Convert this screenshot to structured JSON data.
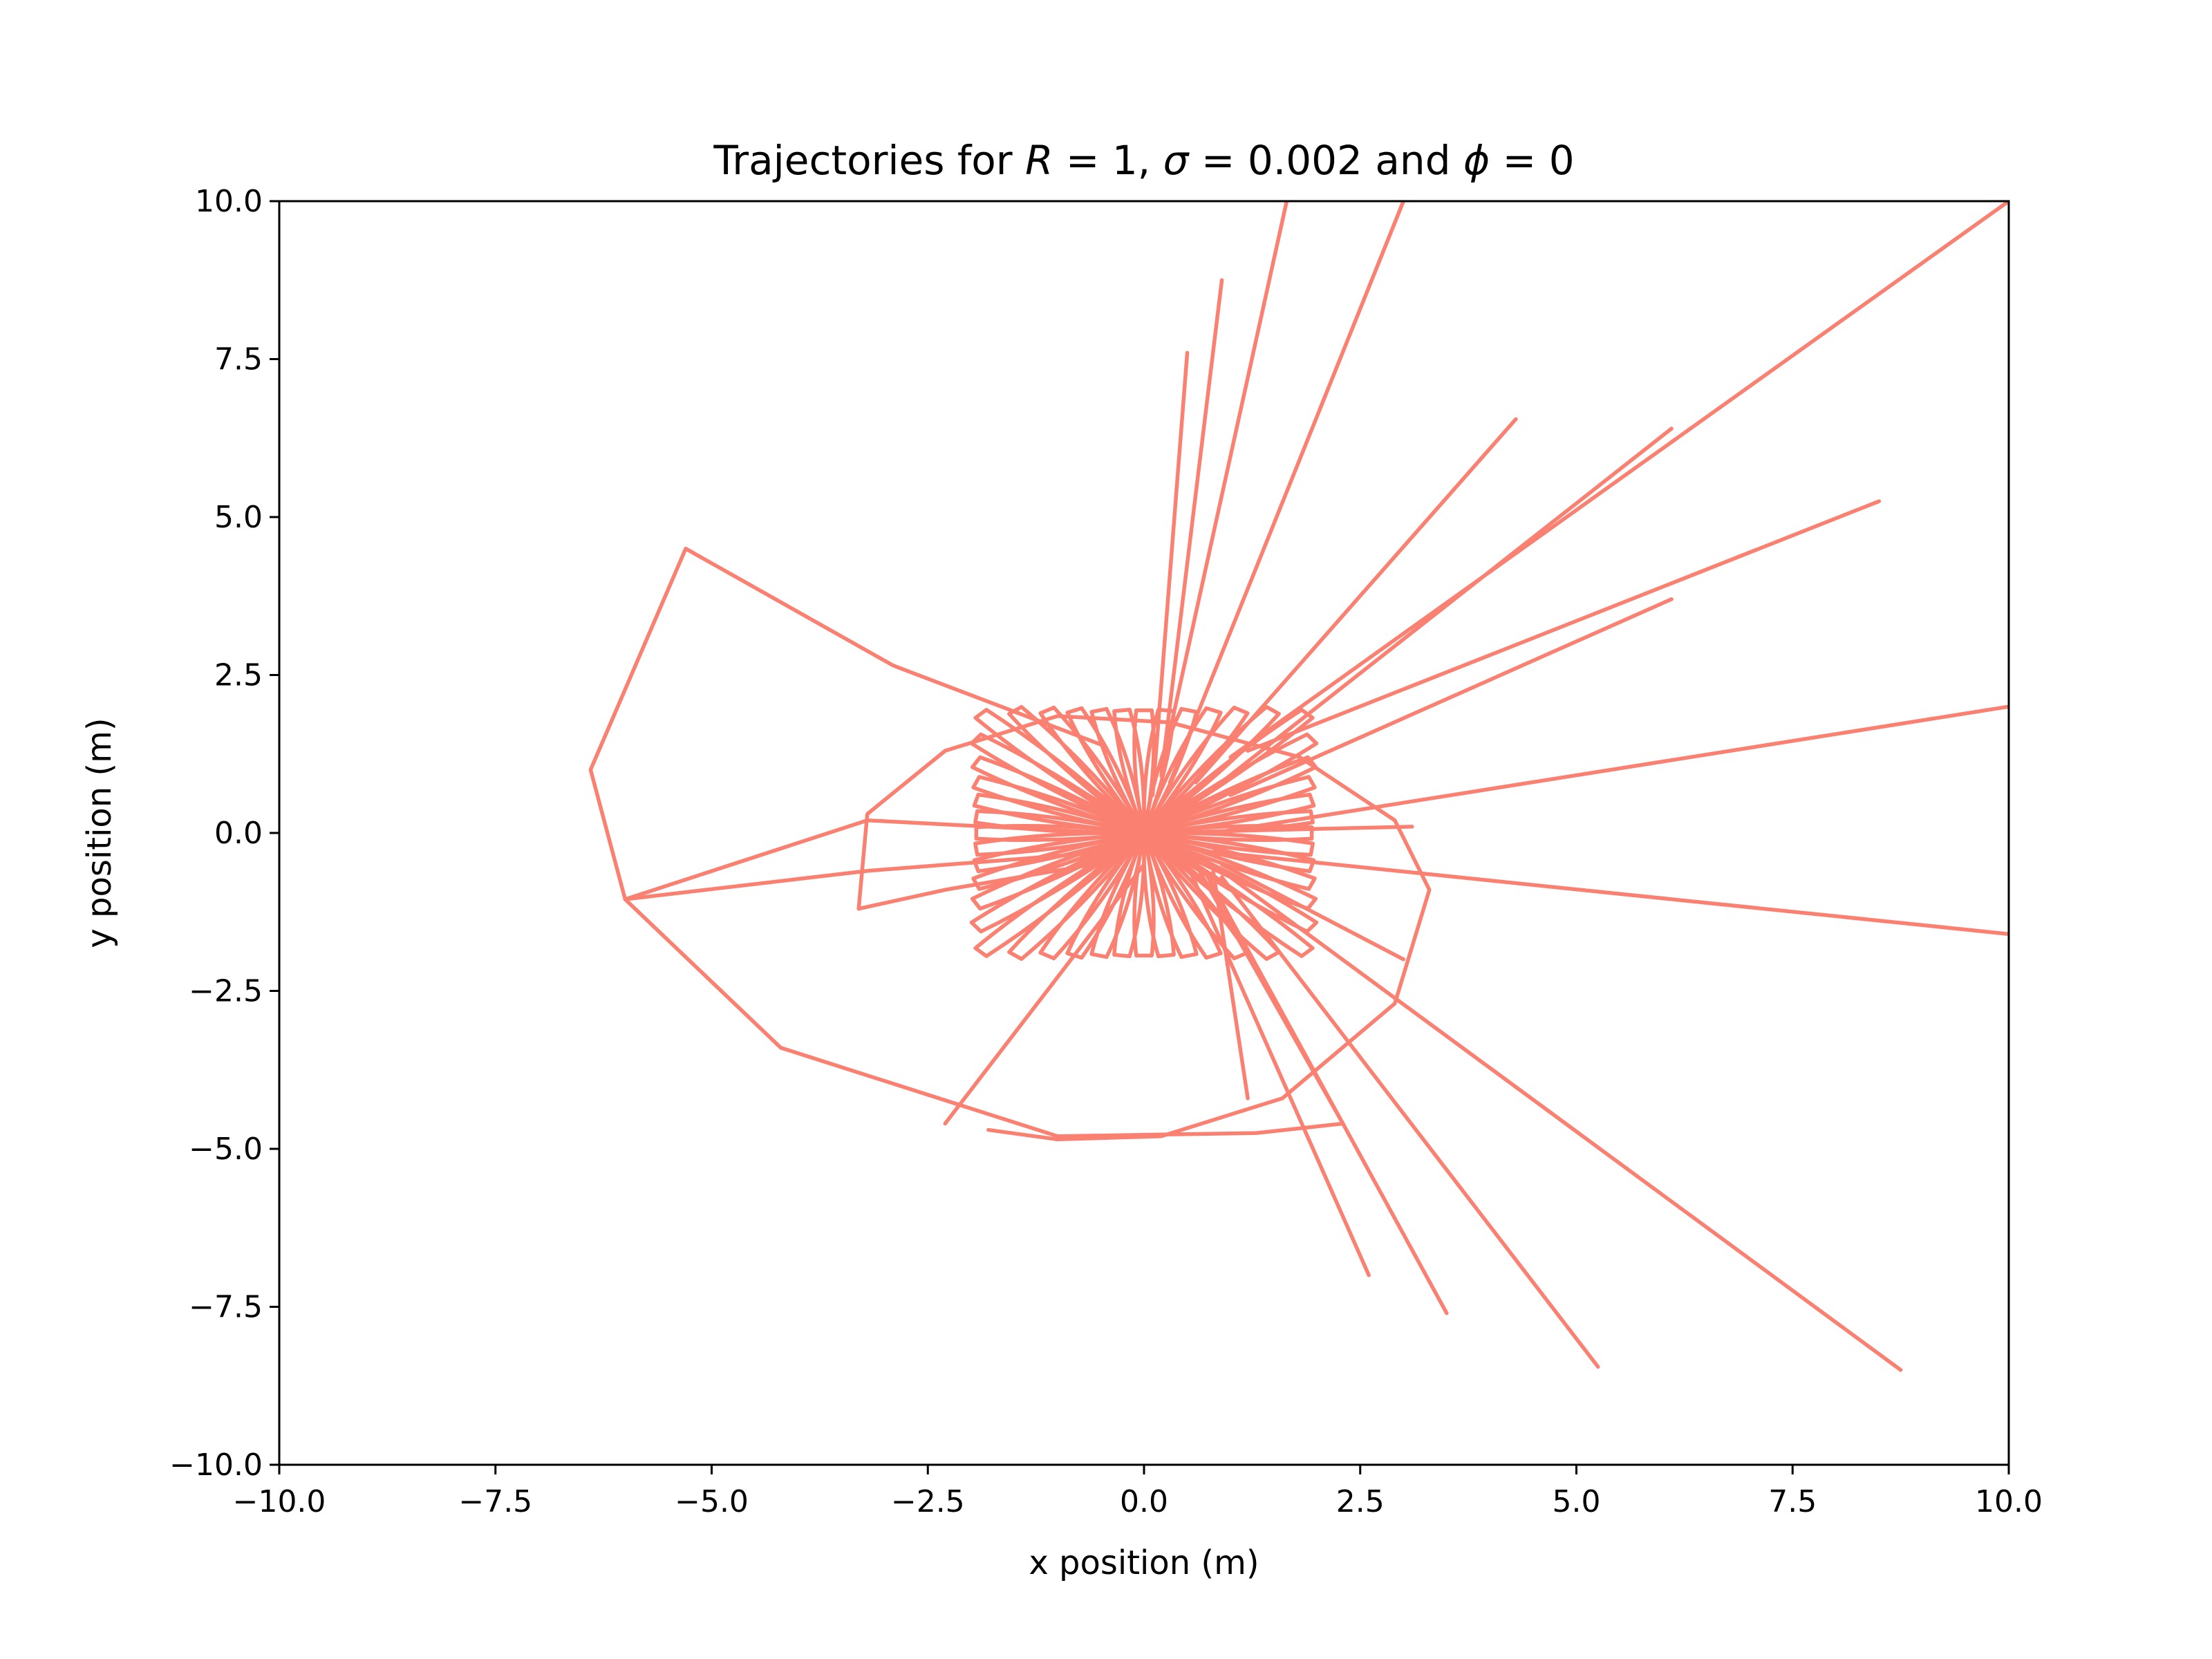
{
  "chart_data": {
    "type": "line",
    "title": {
      "prefix": "Trajectories for ",
      "r_symbol": "R",
      "r_value": "1",
      "sigma_symbol": "σ",
      "sigma_value": "0.002",
      "connector": " and ",
      "phi_symbol": "ϕ",
      "phi_value": "0"
    },
    "xlabel": "x position (m)",
    "ylabel": "y position (m)",
    "xlim": [
      -10,
      10
    ],
    "ylim": [
      -10,
      10
    ],
    "xticks": [
      -10,
      -7.5,
      -5,
      -2.5,
      0,
      2.5,
      5,
      7.5,
      10
    ],
    "yticks": [
      -10,
      -7.5,
      -5,
      -2.5,
      0,
      2.5,
      5,
      7.5,
      10
    ],
    "xtick_labels": [
      "−10.0",
      "−7.5",
      "−5.0",
      "−2.5",
      "0.0",
      "2.5",
      "5.0",
      "7.5",
      "10.0"
    ],
    "ytick_labels": [
      "−10.0",
      "−7.5",
      "−5.0",
      "−2.5",
      "0.0",
      "2.5",
      "5.0",
      "7.5",
      "10.0"
    ],
    "grid": false,
    "line_color": "#fa8072",
    "frame_color": "#000000",
    "central_cluster": {
      "x_range": [
        -2.0,
        2.0
      ],
      "y_range": [
        -2.0,
        2.0
      ],
      "petal_count": 48
    },
    "series": [
      {
        "x": [
          0.2,
          1.65
        ],
        "y": [
          1.0,
          10.0
        ]
      },
      {
        "x": [
          0.3,
          3.0
        ],
        "y": [
          0.8,
          10.0
        ]
      },
      {
        "x": [
          0.1,
          0.5
        ],
        "y": [
          0.6,
          7.6
        ]
      },
      {
        "x": [
          0.2,
          0.9
        ],
        "y": [
          0.9,
          8.75
        ]
      },
      {
        "x": [
          0.6,
          4.3
        ],
        "y": [
          0.8,
          6.55
        ]
      },
      {
        "x": [
          0.8,
          6.1
        ],
        "y": [
          0.7,
          6.4
        ]
      },
      {
        "x": [
          1.0,
          10.0
        ],
        "y": [
          1.2,
          10.0
        ]
      },
      {
        "x": [
          1.2,
          8.5
        ],
        "y": [
          1.3,
          5.25
        ]
      },
      {
        "x": [
          1.0,
          6.1
        ],
        "y": [
          0.6,
          3.7
        ]
      },
      {
        "x": [
          0.8,
          10.0
        ],
        "y": [
          0.0,
          2.0
        ]
      },
      {
        "x": [
          0.8,
          10.0
        ],
        "y": [
          -0.3,
          -1.6
        ]
      },
      {
        "x": [
          0.5,
          2.6
        ],
        "y": [
          -0.5,
          -7.0
        ]
      },
      {
        "x": [
          0.7,
          3.5
        ],
        "y": [
          -0.6,
          -7.6
        ]
      },
      {
        "x": [
          0.9,
          5.25
        ],
        "y": [
          -0.7,
          -8.45
        ]
      },
      {
        "x": [
          1.0,
          8.75
        ],
        "y": [
          -0.7,
          -8.5
        ]
      },
      {
        "x": [
          0.9,
          3.0
        ],
        "y": [
          -0.5,
          -2.0
        ]
      },
      {
        "x": [
          0.6,
          2.3
        ],
        "y": [
          -0.5,
          -4.6
        ]
      },
      {
        "x": [
          0.8,
          1.2
        ],
        "y": [
          -0.6,
          -4.2
        ]
      },
      {
        "x": [
          0.0,
          3.1
        ],
        "y": [
          0.0,
          0.1
        ]
      },
      {
        "x": [
          0.0,
          -2.3
        ],
        "y": [
          -0.5,
          -4.6
        ]
      },
      {
        "x": [
          -0.6,
          -2.3,
          -3.3,
          -3.2,
          -2.3,
          -1.0,
          0.3,
          1.8,
          2.9,
          3.3,
          2.9,
          1.6,
          0.2,
          -1.0,
          -1.8
        ],
        "y": [
          -0.5,
          -0.9,
          -1.2,
          0.3,
          1.3,
          1.85,
          1.75,
          1.2,
          0.2,
          -0.9,
          -2.7,
          -4.2,
          -4.8,
          -4.85,
          -4.7
        ]
      },
      {
        "x": [
          -0.4,
          -3.2,
          -6.0
        ],
        "y": [
          0.0,
          0.2,
          -1.05
        ]
      },
      {
        "x": [
          -0.4,
          -3.2,
          -6.0
        ],
        "y": [
          -0.3,
          -0.6,
          -1.05
        ]
      },
      {
        "x": [
          -0.5,
          -2.9,
          -5.3,
          -6.4,
          -6.0,
          -4.2,
          -1.0,
          1.3,
          2.3
        ],
        "y": [
          1.4,
          2.65,
          4.5,
          1.0,
          -1.05,
          -3.4,
          -4.8,
          -4.75,
          -4.6
        ]
      }
    ]
  }
}
